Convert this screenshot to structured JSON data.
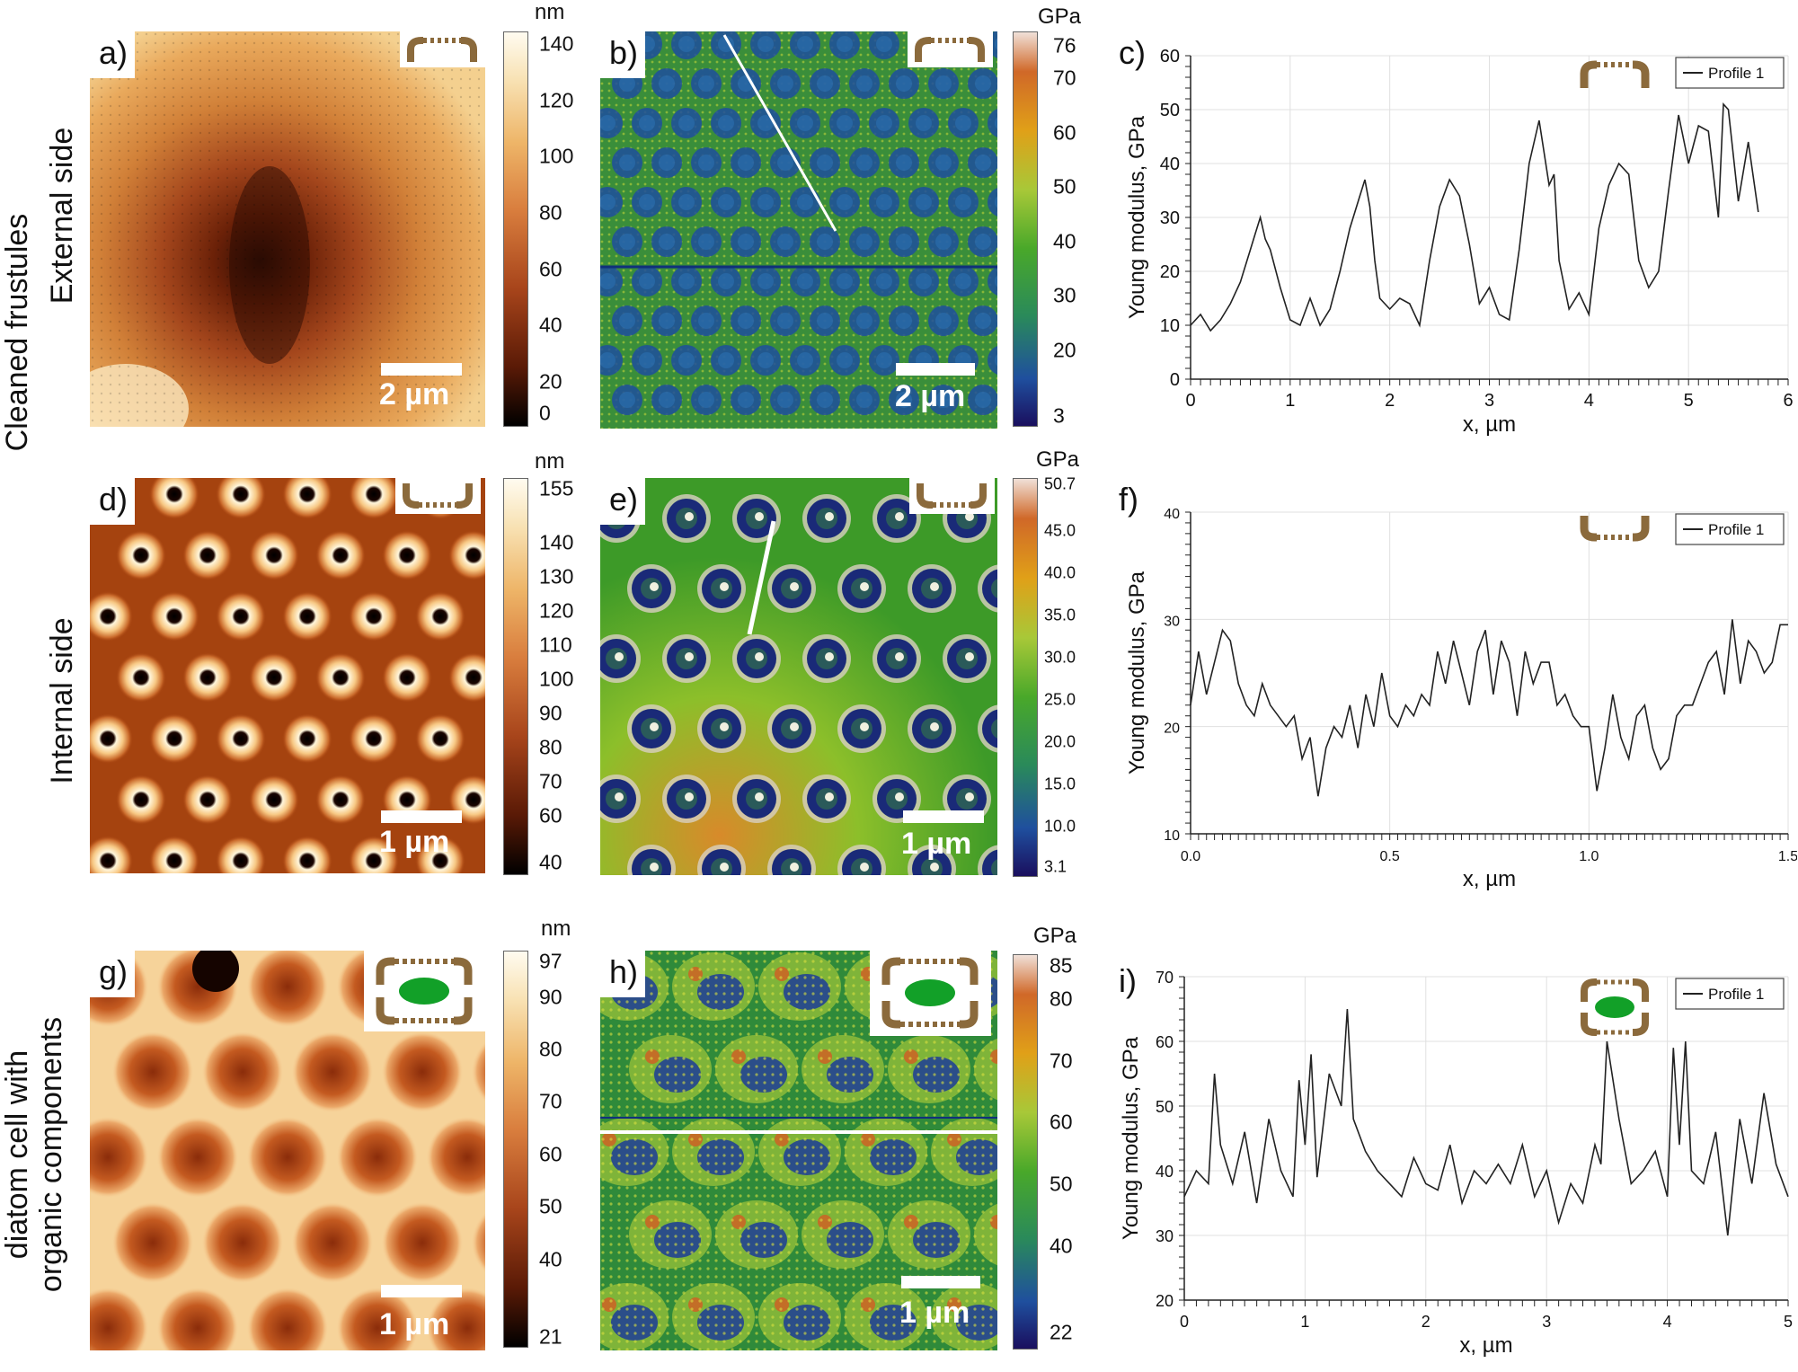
{
  "row_labels": {
    "group": "Cleaned frustules",
    "external": "External side",
    "internal": "Internal side",
    "organic_line1": "diatom cell with",
    "organic_line2": "organic components"
  },
  "panels": {
    "a": {
      "letter": "a)",
      "scale": "2 µm",
      "unit": "nm",
      "ticks": [
        "140",
        "120",
        "100",
        "80",
        "60",
        "40",
        "20",
        "0"
      ]
    },
    "b": {
      "letter": "b)",
      "scale": "2 µm",
      "unit": "GPa",
      "ticks": [
        "76",
        "70",
        "60",
        "50",
        "40",
        "30",
        "20",
        "3"
      ]
    },
    "c": {
      "letter": "c)"
    },
    "d": {
      "letter": "d)",
      "scale": "1 µm",
      "unit": "nm",
      "ticks": [
        "155",
        "140",
        "130",
        "120",
        "110",
        "100",
        "90",
        "80",
        "70",
        "60",
        "40"
      ]
    },
    "e": {
      "letter": "e)",
      "scale": "1 µm",
      "unit": "GPa",
      "ticks": [
        "50.7",
        "45.0",
        "40.0",
        "35.0",
        "30.0",
        "25.0",
        "20.0",
        "15.0",
        "10.0",
        "3.1"
      ]
    },
    "f": {
      "letter": "f)"
    },
    "g": {
      "letter": "g)",
      "scale": "1 µm",
      "unit": "nm",
      "ticks": [
        "97",
        "90",
        "80",
        "70",
        "60",
        "50",
        "40",
        "21"
      ]
    },
    "h": {
      "letter": "h)",
      "scale": "1 µm",
      "unit": "GPa",
      "ticks": [
        "85",
        "80",
        "70",
        "60",
        "50",
        "40",
        "22"
      ]
    },
    "i": {
      "letter": "i)"
    }
  },
  "colors": {
    "height_map": [
      "#000000",
      "#5a1a06",
      "#a8451b",
      "#d97e3e",
      "#eeb568",
      "#f8e2b4",
      "#fffbf0"
    ],
    "modulus_map": [
      "#1a0f5e",
      "#1f4f9e",
      "#2a8a5a",
      "#49a82a",
      "#a8c838",
      "#e0a018",
      "#d06828",
      "#f0e0d8"
    ],
    "frustule": "#8b6a3c",
    "organic": "#12a028"
  },
  "chart_data": [
    {
      "id": "c",
      "type": "line",
      "title": "",
      "xlabel": "x, µm",
      "ylabel": "Young modulus, GPa",
      "xlim": [
        0,
        6
      ],
      "ylim": [
        0,
        60
      ],
      "xticks": [
        "0",
        "1",
        "2",
        "3",
        "4",
        "5",
        "6"
      ],
      "yticks": [
        "0",
        "10",
        "20",
        "30",
        "40",
        "50",
        "60"
      ],
      "legend": "Profile 1",
      "series": [
        {
          "name": "Profile 1",
          "x": [
            0,
            0.1,
            0.2,
            0.3,
            0.4,
            0.5,
            0.6,
            0.65,
            0.7,
            0.75,
            0.8,
            0.9,
            1.0,
            1.1,
            1.2,
            1.3,
            1.4,
            1.5,
            1.6,
            1.7,
            1.75,
            1.8,
            1.85,
            1.9,
            2.0,
            2.1,
            2.2,
            2.3,
            2.4,
            2.5,
            2.6,
            2.7,
            2.8,
            2.9,
            3.0,
            3.1,
            3.2,
            3.3,
            3.4,
            3.5,
            3.6,
            3.65,
            3.7,
            3.8,
            3.9,
            4.0,
            4.1,
            4.2,
            4.3,
            4.4,
            4.5,
            4.6,
            4.7,
            4.8,
            4.9,
            5.0,
            5.1,
            5.2,
            5.3,
            5.35,
            5.4,
            5.5,
            5.6,
            5.7
          ],
          "values": [
            10,
            12,
            9,
            11,
            14,
            18,
            24,
            27,
            30,
            26,
            24,
            17,
            11,
            10,
            15,
            10,
            13,
            20,
            28,
            34,
            37,
            32,
            22,
            15,
            13,
            15,
            14,
            10,
            22,
            32,
            37,
            34,
            25,
            14,
            17,
            12,
            11,
            24,
            40,
            48,
            36,
            38,
            22,
            13,
            16,
            12,
            28,
            36,
            40,
            38,
            22,
            17,
            20,
            35,
            49,
            40,
            47,
            46,
            30,
            51,
            50,
            33,
            44,
            31
          ]
        }
      ]
    },
    {
      "id": "f",
      "type": "line",
      "title": "",
      "xlabel": "x, µm",
      "ylabel": "Young modulus, GPa",
      "xlim": [
        0,
        1.5
      ],
      "ylim": [
        10,
        40
      ],
      "xticks": [
        "0.0",
        "0.5",
        "1.0",
        "1.5"
      ],
      "yticks": [
        "10",
        "20",
        "30",
        "40"
      ],
      "legend": "Profile 1",
      "series": [
        {
          "name": "Profile 1",
          "x": [
            0,
            0.02,
            0.04,
            0.06,
            0.08,
            0.1,
            0.12,
            0.14,
            0.16,
            0.18,
            0.2,
            0.22,
            0.24,
            0.26,
            0.28,
            0.3,
            0.32,
            0.34,
            0.36,
            0.38,
            0.4,
            0.42,
            0.44,
            0.46,
            0.48,
            0.5,
            0.52,
            0.54,
            0.56,
            0.58,
            0.6,
            0.62,
            0.64,
            0.66,
            0.68,
            0.7,
            0.72,
            0.74,
            0.76,
            0.78,
            0.8,
            0.82,
            0.84,
            0.86,
            0.88,
            0.9,
            0.92,
            0.94,
            0.96,
            0.98,
            1.0,
            1.02,
            1.04,
            1.06,
            1.08,
            1.1,
            1.12,
            1.14,
            1.16,
            1.18,
            1.2,
            1.22,
            1.24,
            1.26,
            1.28,
            1.3,
            1.32,
            1.34,
            1.36,
            1.38,
            1.4,
            1.42,
            1.44,
            1.46,
            1.48,
            1.5
          ],
          "values": [
            22,
            27,
            23,
            26,
            29,
            28,
            24,
            22,
            21,
            24,
            22,
            21,
            20,
            21,
            17,
            19,
            13.5,
            18,
            20,
            19,
            22,
            18,
            23,
            20,
            25,
            21,
            20,
            22,
            21,
            23,
            22,
            27,
            24,
            28,
            25,
            22,
            27,
            29,
            23,
            28,
            26,
            21,
            27,
            24,
            26,
            26,
            22,
            23,
            21,
            20,
            20,
            14,
            18,
            23,
            19,
            17,
            21,
            22,
            18,
            16,
            17,
            21,
            22,
            22,
            24,
            26,
            27,
            23,
            30,
            24,
            28,
            27,
            25,
            26,
            29.5,
            29.5
          ]
        }
      ]
    },
    {
      "id": "i",
      "type": "line",
      "title": "",
      "xlabel": "x, µm",
      "ylabel": "Young modulus, GPa",
      "xlim": [
        0,
        5
      ],
      "ylim": [
        20,
        70
      ],
      "xticks": [
        "0",
        "1",
        "2",
        "3",
        "4",
        "5"
      ],
      "yticks": [
        "20",
        "30",
        "40",
        "50",
        "60",
        "70"
      ],
      "legend": "Profile 1",
      "series": [
        {
          "name": "Profile 1",
          "x": [
            0,
            0.1,
            0.2,
            0.25,
            0.3,
            0.4,
            0.5,
            0.6,
            0.7,
            0.8,
            0.9,
            0.95,
            1.0,
            1.05,
            1.1,
            1.2,
            1.3,
            1.35,
            1.4,
            1.5,
            1.6,
            1.7,
            1.8,
            1.9,
            2.0,
            2.1,
            2.2,
            2.3,
            2.4,
            2.5,
            2.6,
            2.7,
            2.8,
            2.9,
            3.0,
            3.1,
            3.2,
            3.3,
            3.4,
            3.45,
            3.5,
            3.6,
            3.7,
            3.8,
            3.9,
            4.0,
            4.05,
            4.1,
            4.15,
            4.2,
            4.3,
            4.4,
            4.5,
            4.6,
            4.7,
            4.8,
            4.9,
            5.0
          ],
          "values": [
            36,
            40,
            38,
            55,
            44,
            38,
            46,
            35,
            48,
            40,
            36,
            54,
            44,
            58,
            39,
            55,
            50,
            65,
            48,
            43,
            40,
            38,
            36,
            42,
            38,
            37,
            44,
            35,
            40,
            38,
            41,
            38,
            44,
            36,
            40,
            32,
            38,
            35,
            44,
            41,
            60,
            48,
            38,
            40,
            43,
            36,
            59,
            44,
            60,
            40,
            38,
            46,
            30,
            48,
            38,
            52,
            41,
            36
          ]
        }
      ]
    }
  ]
}
